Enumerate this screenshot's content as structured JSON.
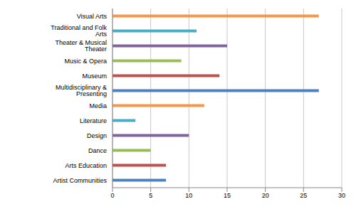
{
  "chart_data": {
    "type": "bar",
    "orientation": "horizontal",
    "categories": [
      "Visual Arts",
      "Traditional and Folk Arts",
      "Theater & Musical Theater",
      "Music & Opera",
      "Museum",
      "Multidisciplinary & Presenting",
      "Media",
      "Literature",
      "Design",
      "Dance",
      "Arts Education",
      "Artist Communities"
    ],
    "values": [
      27,
      11,
      15,
      9,
      14,
      27,
      12,
      3,
      10,
      5,
      7,
      7
    ],
    "colors": [
      "#f79646",
      "#4bacc6",
      "#8064a2",
      "#9bbb59",
      "#c0504d",
      "#4f81bd",
      "#f79646",
      "#4bacc6",
      "#8064a2",
      "#9bbb59",
      "#c0504d",
      "#4f81bd"
    ],
    "xlim": [
      0,
      30
    ],
    "xticks": [
      0,
      5,
      10,
      15,
      20,
      25,
      30
    ],
    "grid": true
  }
}
